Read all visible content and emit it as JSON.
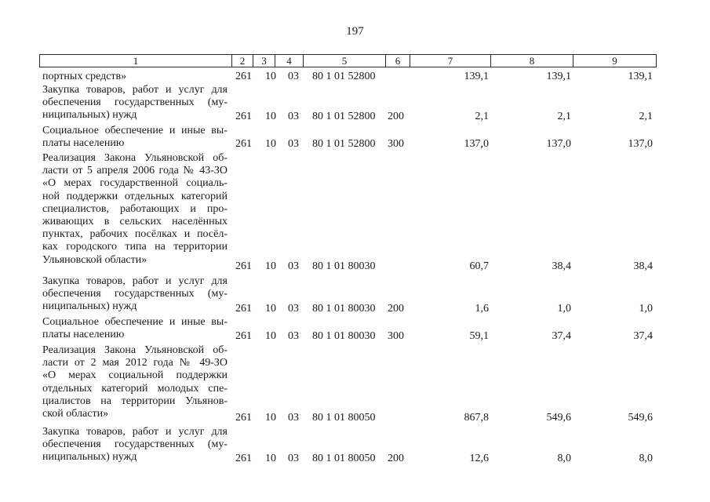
{
  "page_number": "197",
  "header": [
    "1",
    "2",
    "3",
    "4",
    "5",
    "6",
    "7",
    "8",
    "9"
  ],
  "rows": [
    {
      "lines": [
        "портных средств»"
      ],
      "gr": "261",
      "rz": "10",
      "pr": "03",
      "csr": "80 1 01 52800",
      "vr": "",
      "s1": "139,1",
      "s2": "139,1",
      "s3": "139,1"
    },
    {
      "lines": [
        "Закупка товаров, работ и услуг для",
        "обеспечения государственных (му-",
        "ниципальных) нужд"
      ],
      "gr": "261",
      "rz": "10",
      "pr": "03",
      "csr": "80 1 01 52800",
      "vr": "200",
      "s1": "2,1",
      "s2": "2,1",
      "s3": "2,1"
    },
    {
      "lines": [
        "Социальное обеспечение и иные вы-",
        "платы населению"
      ],
      "gr": "261",
      "rz": "10",
      "pr": "03",
      "csr": "80 1 01 52800",
      "vr": "300",
      "s1": "137,0",
      "s2": "137,0",
      "s3": "137,0"
    },
    {
      "lines": [
        "Реализация Закона Ульяновской об-",
        "ласти от 5 апреля 2006 года № 43-ЗО",
        "«О мерах государственной социаль-",
        "ной поддержки отдельных категорий",
        "специалистов, работающих и про-",
        "живающих в сельских населённых",
        "пунктах, рабочих посёлках и посёл-",
        "ках городского типа на территории",
        "Ульяновской области»"
      ],
      "gr": "261",
      "rz": "10",
      "pr": "03",
      "csr": "80 1 01 80030",
      "vr": "",
      "s1": "60,7",
      "s2": "38,4",
      "s3": "38,4"
    },
    {
      "lines": [
        "Закупка товаров, работ и услуг для",
        "обеспечения государственных (му-",
        "ниципальных) нужд"
      ],
      "gr": "261",
      "rz": "10",
      "pr": "03",
      "csr": "80 1 01 80030",
      "vr": "200",
      "s1": "1,6",
      "s2": "1,0",
      "s3": "1,0"
    },
    {
      "lines": [
        "Социальное обеспечение и иные вы-",
        "платы населению"
      ],
      "gr": "261",
      "rz": "10",
      "pr": "03",
      "csr": "80 1 01 80030",
      "vr": "300",
      "s1": "59,1",
      "s2": "37,4",
      "s3": "37,4"
    },
    {
      "lines": [
        "Реализация Закона Ульяновской об-",
        "ласти от 2 мая 2012 года № 49-ЗО",
        "«О мерах социальной поддержки",
        "отдельных категорий молодых спе-",
        "циалистов на территории Ульянов-",
        "ской области»"
      ],
      "gr": "261",
      "rz": "10",
      "pr": "03",
      "csr": "80 1 01 80050",
      "vr": "",
      "s1": "867,8",
      "s2": "549,6",
      "s3": "549,6"
    },
    {
      "lines": [
        "Закупка товаров, работ и услуг для",
        "обеспечения государственных (му-",
        "ниципальных) нужд"
      ],
      "gr": "261",
      "rz": "10",
      "pr": "03",
      "csr": "80 1 01 80050",
      "vr": "200",
      "s1": "12,6",
      "s2": "8,0",
      "s3": "8,0"
    }
  ]
}
